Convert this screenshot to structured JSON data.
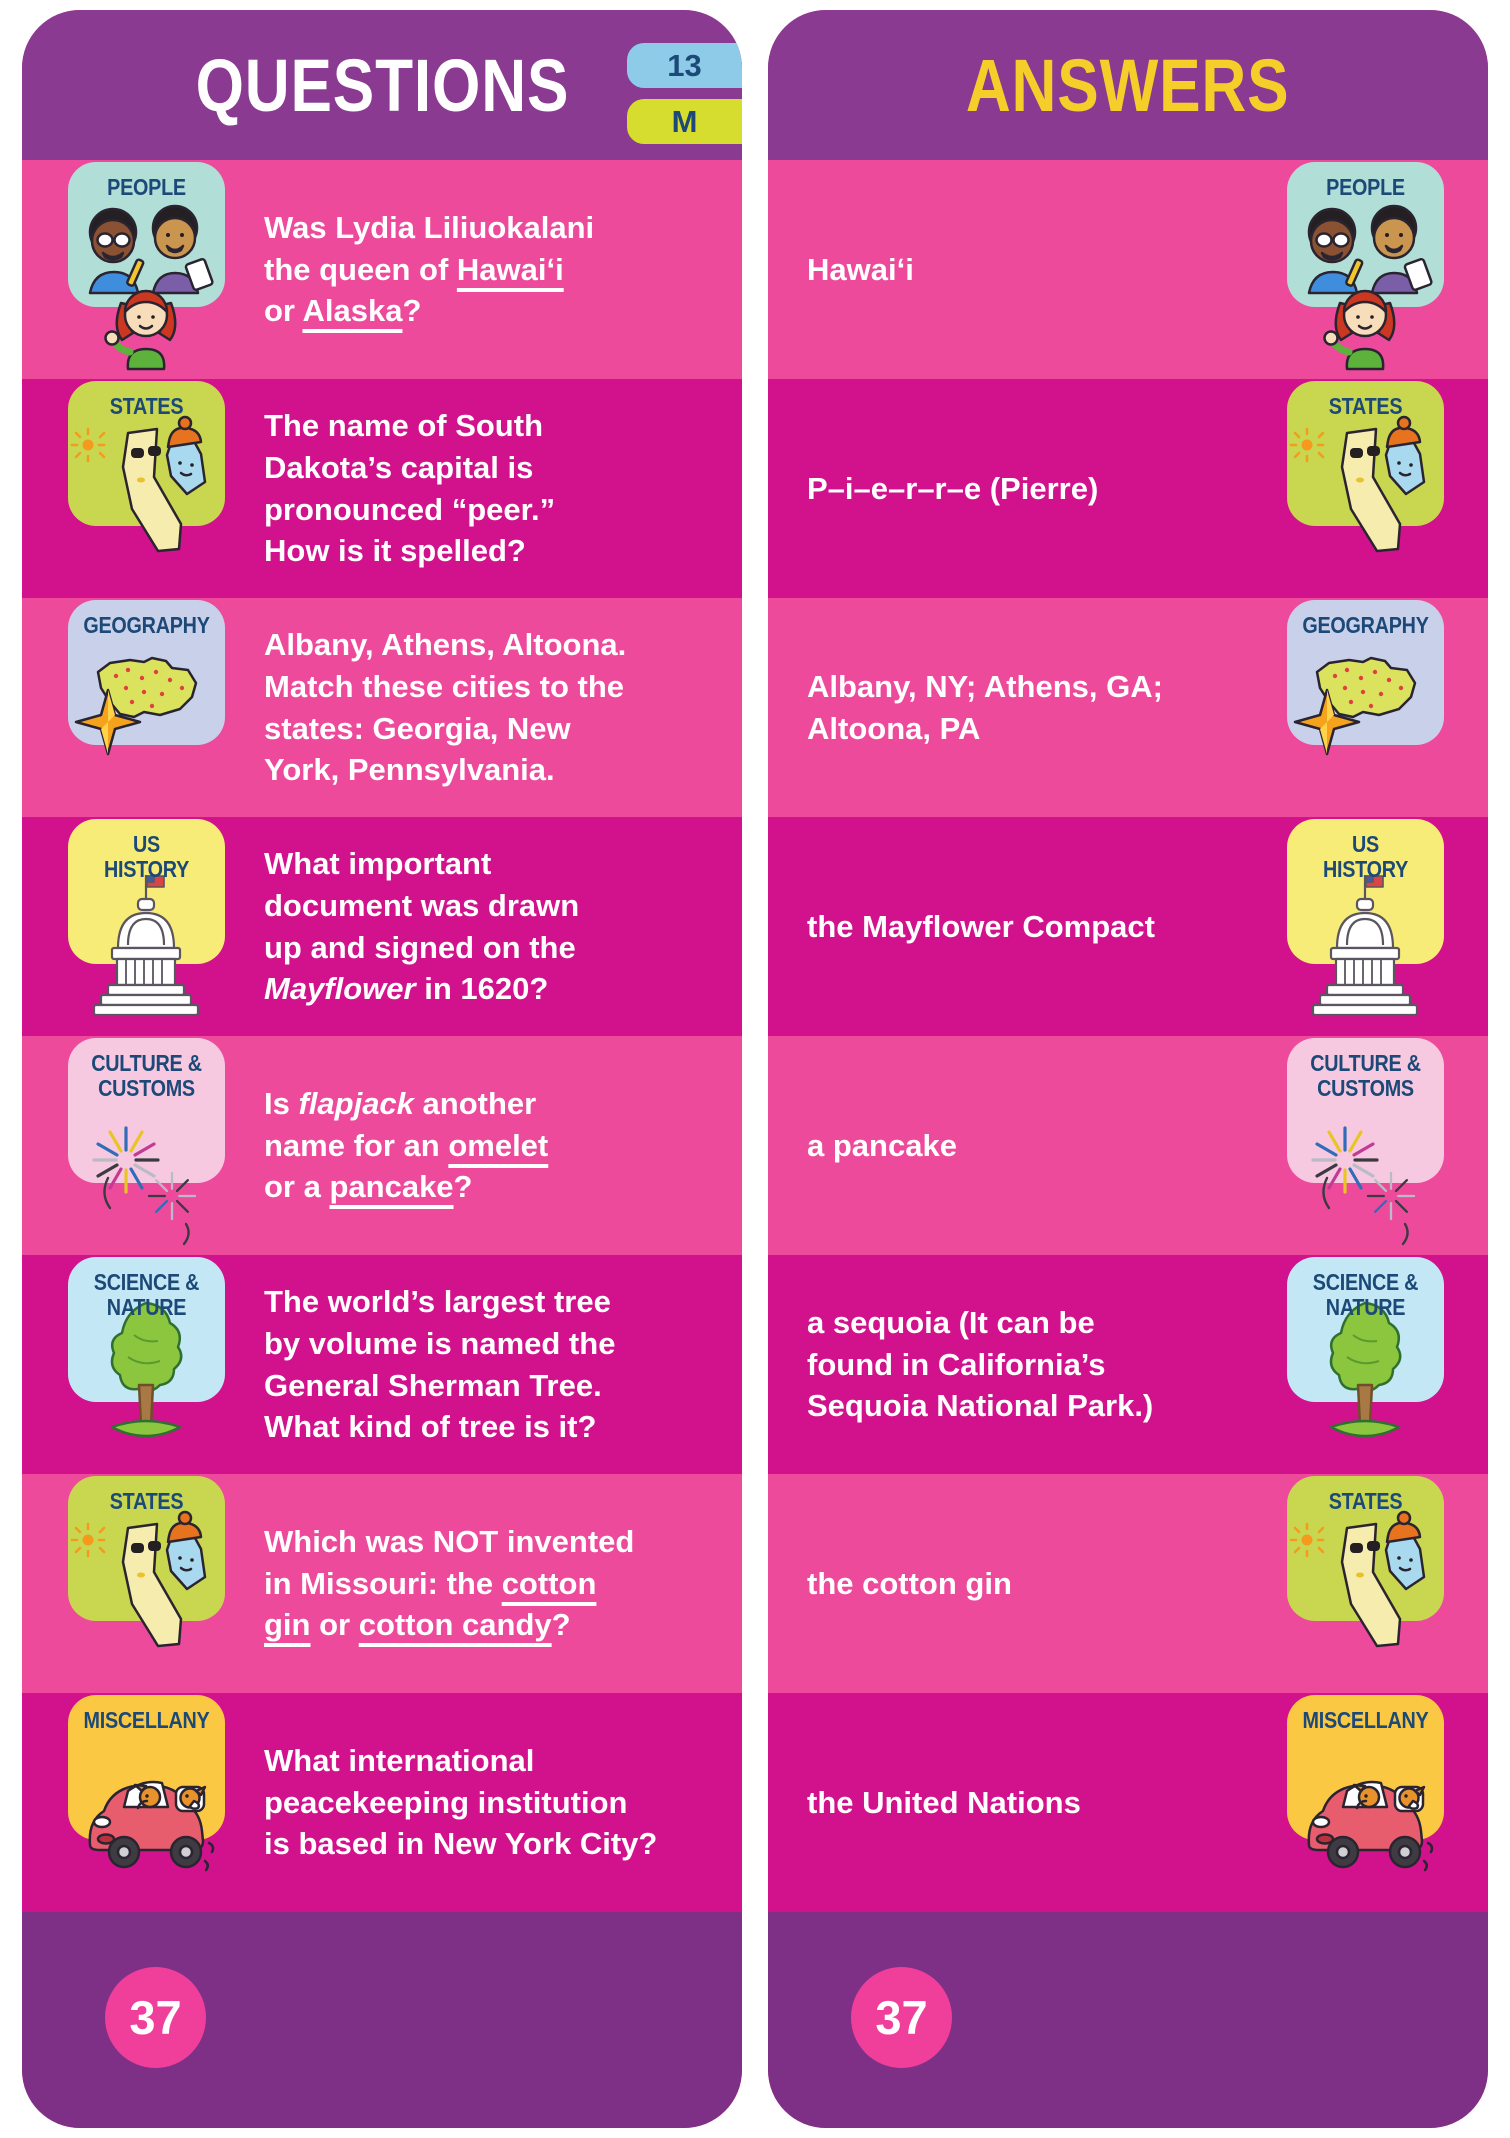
{
  "questions": {
    "title": "QUESTIONS",
    "badge_number": "13",
    "badge_letter": "M",
    "page_number": "37",
    "items": [
      {
        "category": "people",
        "segments": [
          {
            "t": "Was Lydia Liliuokalani\nthe queen of ",
            "s": ""
          },
          {
            "t": "Hawaiʻi",
            "s": "u"
          },
          {
            "t": "\nor ",
            "s": ""
          },
          {
            "t": "Alaska",
            "s": "u"
          },
          {
            "t": "?",
            "s": ""
          }
        ]
      },
      {
        "category": "states",
        "segments": [
          {
            "t": "The name of South\nDakota’s capital is\npronounced “peer.”\nHow is it spelled?",
            "s": ""
          }
        ]
      },
      {
        "category": "geography",
        "segments": [
          {
            "t": "Albany, Athens, Altoona.\nMatch these cities to the\nstates: Georgia, New\nYork, Pennsylvania.",
            "s": ""
          }
        ]
      },
      {
        "category": "us-history",
        "segments": [
          {
            "t": "What important\ndocument was drawn\nup and signed on the\n",
            "s": ""
          },
          {
            "t": "Mayflower",
            "s": "i"
          },
          {
            "t": " in 1620?",
            "s": ""
          }
        ]
      },
      {
        "category": "culture-customs",
        "segments": [
          {
            "t": "Is ",
            "s": ""
          },
          {
            "t": "flapjack",
            "s": "i"
          },
          {
            "t": " another\nname for an ",
            "s": ""
          },
          {
            "t": "omelet",
            "s": "u"
          },
          {
            "t": "\nor a ",
            "s": ""
          },
          {
            "t": "pancake",
            "s": "u"
          },
          {
            "t": "?",
            "s": ""
          }
        ]
      },
      {
        "category": "science-nature",
        "segments": [
          {
            "t": "The world’s largest tree\nby volume is named the\nGeneral Sherman Tree.\nWhat kind of tree is it?",
            "s": ""
          }
        ]
      },
      {
        "category": "states",
        "segments": [
          {
            "t": "Which was NOT invented\nin Missouri: the ",
            "s": ""
          },
          {
            "t": "cotton\ngin",
            "s": "u"
          },
          {
            "t": " or ",
            "s": ""
          },
          {
            "t": "cotton candy",
            "s": "u"
          },
          {
            "t": "?",
            "s": ""
          }
        ]
      },
      {
        "category": "miscellany",
        "segments": [
          {
            "t": "What international\npeacekeeping institution\nis based in New York City?",
            "s": ""
          }
        ]
      }
    ]
  },
  "answers": {
    "title": "ANSWERS",
    "page_number": "37",
    "items": [
      {
        "category": "people",
        "text": "Hawaiʻi"
      },
      {
        "category": "states",
        "text": "P–i–e–r–r–e (Pierre)"
      },
      {
        "category": "geography",
        "text": "Albany, NY; Athens, GA;\nAltoona, PA"
      },
      {
        "category": "us-history",
        "text": "the Mayflower Compact"
      },
      {
        "category": "culture-customs",
        "text": "a pancake"
      },
      {
        "category": "science-nature",
        "text": "a sequoia (It can be\nfound in California’s\nSequoia National Park.)"
      },
      {
        "category": "states",
        "text": "the cotton gin"
      },
      {
        "category": "miscellany",
        "text": "the United Nations"
      }
    ]
  },
  "categories": {
    "people": {
      "label": "PEOPLE",
      "tile_color": "#b2ded8"
    },
    "states": {
      "label": "STATES",
      "tile_color": "#c9d64f"
    },
    "geography": {
      "label": "GEOGRAPHY",
      "tile_color": "#c9d1ea"
    },
    "us-history": {
      "label": "US\nHISTORY",
      "tile_color": "#f7ec77"
    },
    "culture-customs": {
      "label": "CULTURE &\nCUSTOMS",
      "tile_color": "#f6c9e0"
    },
    "science-nature": {
      "label": "SCIENCE &\nNATURE",
      "tile_color": "#c4e7f6"
    },
    "miscellany": {
      "label": "MISCELLANY",
      "tile_color": "#fbc844"
    }
  },
  "colors": {
    "header_purple": "#8a3a91",
    "footer_purple": "#7e3087",
    "row_light_pink": "#ee4a9c",
    "row_dark_magenta": "#d2118c",
    "answers_title_yellow": "#f6ce29",
    "deck_number_blue": "#8ecbe9",
    "deck_letter_green": "#d6dd2e",
    "navy_text": "#1c4977",
    "page_circle_pink": "#ef3f9a",
    "question_text": "#ffffff"
  }
}
